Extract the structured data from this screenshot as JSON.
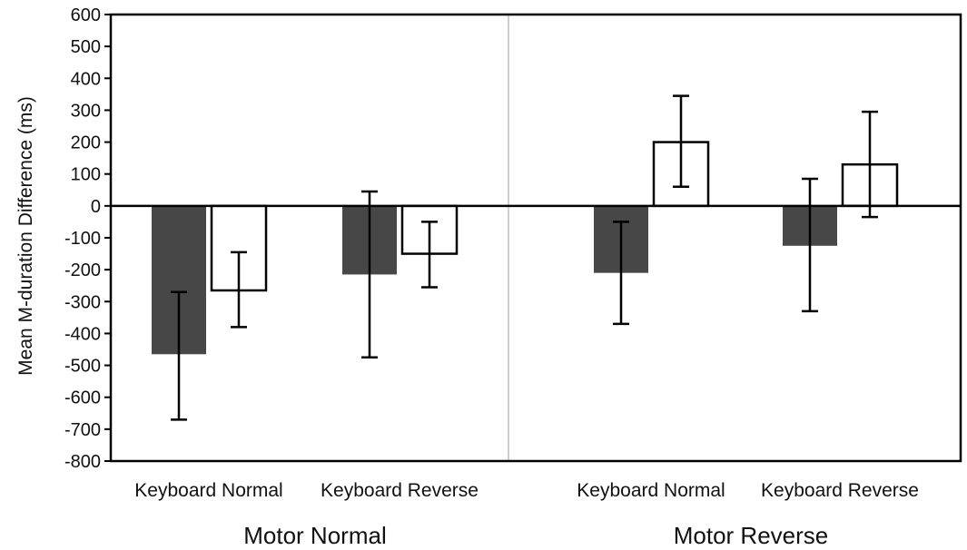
{
  "chart_data": {
    "type": "bar",
    "title": "",
    "ylabel": "Mean M-duration Difference (ms)",
    "xlabel": "",
    "ylim": [
      -800,
      600
    ],
    "yticks": [
      600,
      500,
      400,
      300,
      200,
      100,
      0,
      -100,
      -200,
      -300,
      -400,
      -500,
      -600,
      -700,
      -800
    ],
    "ytick_labels": [
      "600",
      "500",
      "400",
      "300",
      "200",
      "100",
      "0",
      "-100",
      "-200",
      "-300",
      "-400",
      "-500",
      "-600",
      "-700",
      "-800"
    ],
    "grid": false,
    "legend": null,
    "groups": [
      "Motor Normal",
      "Motor Reverse"
    ],
    "categories": [
      "Keyboard Normal",
      "Keyboard Reverse",
      "Keyboard Normal",
      "Keyboard Reverse"
    ],
    "category_group": [
      0,
      0,
      1,
      1
    ],
    "series": [
      {
        "color": "#474747",
        "fill_style": "solid",
        "values": [
          -465,
          -215,
          -210,
          -125
        ],
        "error_low": [
          -670,
          -475,
          -370,
          -330
        ],
        "error_high": [
          -270,
          45,
          -50,
          85
        ]
      },
      {
        "color": "#ffffff",
        "fill_style": "outline",
        "values": [
          -265,
          -150,
          200,
          130
        ],
        "error_low": [
          -380,
          -255,
          60,
          -35
        ],
        "error_high": [
          -145,
          -50,
          345,
          295
        ]
      }
    ]
  }
}
